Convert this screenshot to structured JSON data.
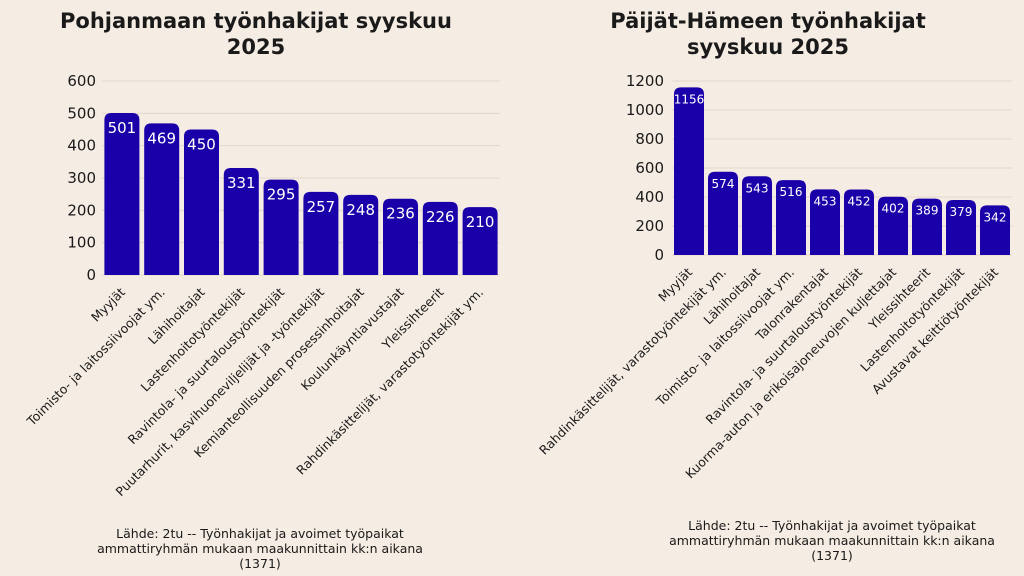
{
  "colors": {
    "bar": "#1a00a8",
    "background": "#f5ece3",
    "grid": "#e2d8ce"
  },
  "chart_data": [
    {
      "type": "bar",
      "title_lines": [
        "Pohjanmaan työnhakijat syyskuu",
        "2025"
      ],
      "categories": [
        "Myyjät",
        "Toimisto- ja laitossiivoojat ym.",
        "Lähihoitajat",
        "Lastenhoitotyöntekijät",
        "Ravintola- ja suurtaloustyöntekijät",
        "Puutarhurit, kasvihuoneviljelijät ja -työntekijät",
        "Kemianteollisuuden prosessinhoitajat",
        "Koulunkäyntiavustajat",
        "Yleissihteerit",
        "Rahdinkäsittelijät, varastotyöntekijät ym."
      ],
      "values": [
        501,
        469,
        450,
        331,
        295,
        257,
        248,
        236,
        226,
        210
      ],
      "yticks": [
        0,
        100,
        200,
        300,
        400,
        500,
        600
      ],
      "ylim": [
        0,
        600
      ],
      "source_lines": [
        "Lähde: 2tu -- Työnhakijat ja avoimet työpaikat",
        "ammattiryhmän mukaan maakunnittain kk:n aikana (1371)"
      ]
    },
    {
      "type": "bar",
      "title_lines": [
        "Päijät-Hämeen työnhakijat",
        "syyskuu 2025"
      ],
      "categories": [
        "Myyjät",
        "Rahdinkäsittelijät, varastotyöntekijät ym.",
        "Lähihoitajat",
        "Toimisto- ja laitossiivoojat ym.",
        "Talonrakentajat",
        "Ravintola- ja suurtaloustyöntekijät",
        "Kuorma-auton ja erikoisajoneuvojen kuljettajat",
        "Yleissihteerit",
        "Lastenhoitotyöntekijät",
        "Avustavat keittiötyöntekijät"
      ],
      "values": [
        1156,
        574,
        543,
        516,
        453,
        452,
        402,
        389,
        379,
        342
      ],
      "yticks": [
        0,
        200,
        400,
        600,
        800,
        1000,
        1200
      ],
      "ylim": [
        0,
        1200
      ],
      "source_lines": [
        "Lähde: 2tu -- Työnhakijat ja avoimet työpaikat",
        "ammattiryhmän mukaan maakunnittain kk:n aikana",
        "(1371)"
      ]
    }
  ]
}
